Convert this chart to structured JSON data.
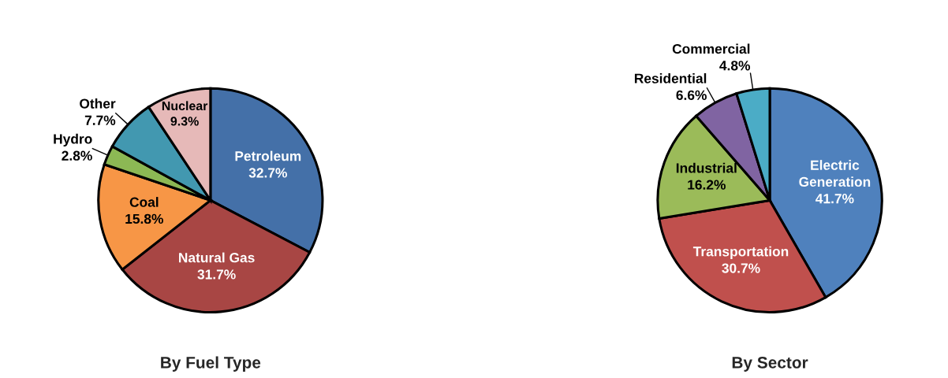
{
  "chart_data": [
    {
      "type": "pie",
      "title": "By Fuel Type",
      "categories": [
        "Petroleum",
        "Natural Gas",
        "Coal",
        "Hydro",
        "Other",
        "Nuclear"
      ],
      "values": [
        32.7,
        31.7,
        15.8,
        2.8,
        7.7,
        9.3
      ],
      "value_labels": [
        "32.7%",
        "31.7%",
        "15.8%",
        "2.8%",
        "7.7%",
        "9.3%"
      ],
      "colors": [
        "#4470a8",
        "#a84644",
        "#f79646",
        "#8cb854",
        "#4298b0",
        "#e6b9b8"
      ]
    },
    {
      "type": "pie",
      "title": "By Sector",
      "categories": [
        "Electric Generation",
        "Transportation",
        "Industrial",
        "Residential",
        "Commercial"
      ],
      "values": [
        41.7,
        30.7,
        16.2,
        6.6,
        4.8
      ],
      "value_labels": [
        "41.7%",
        "30.7%",
        "16.2%",
        "6.6%",
        "4.8%"
      ],
      "colors": [
        "#4f81bd",
        "#c0504d",
        "#9bbb59",
        "#8064a2",
        "#4bacc6"
      ]
    }
  ]
}
